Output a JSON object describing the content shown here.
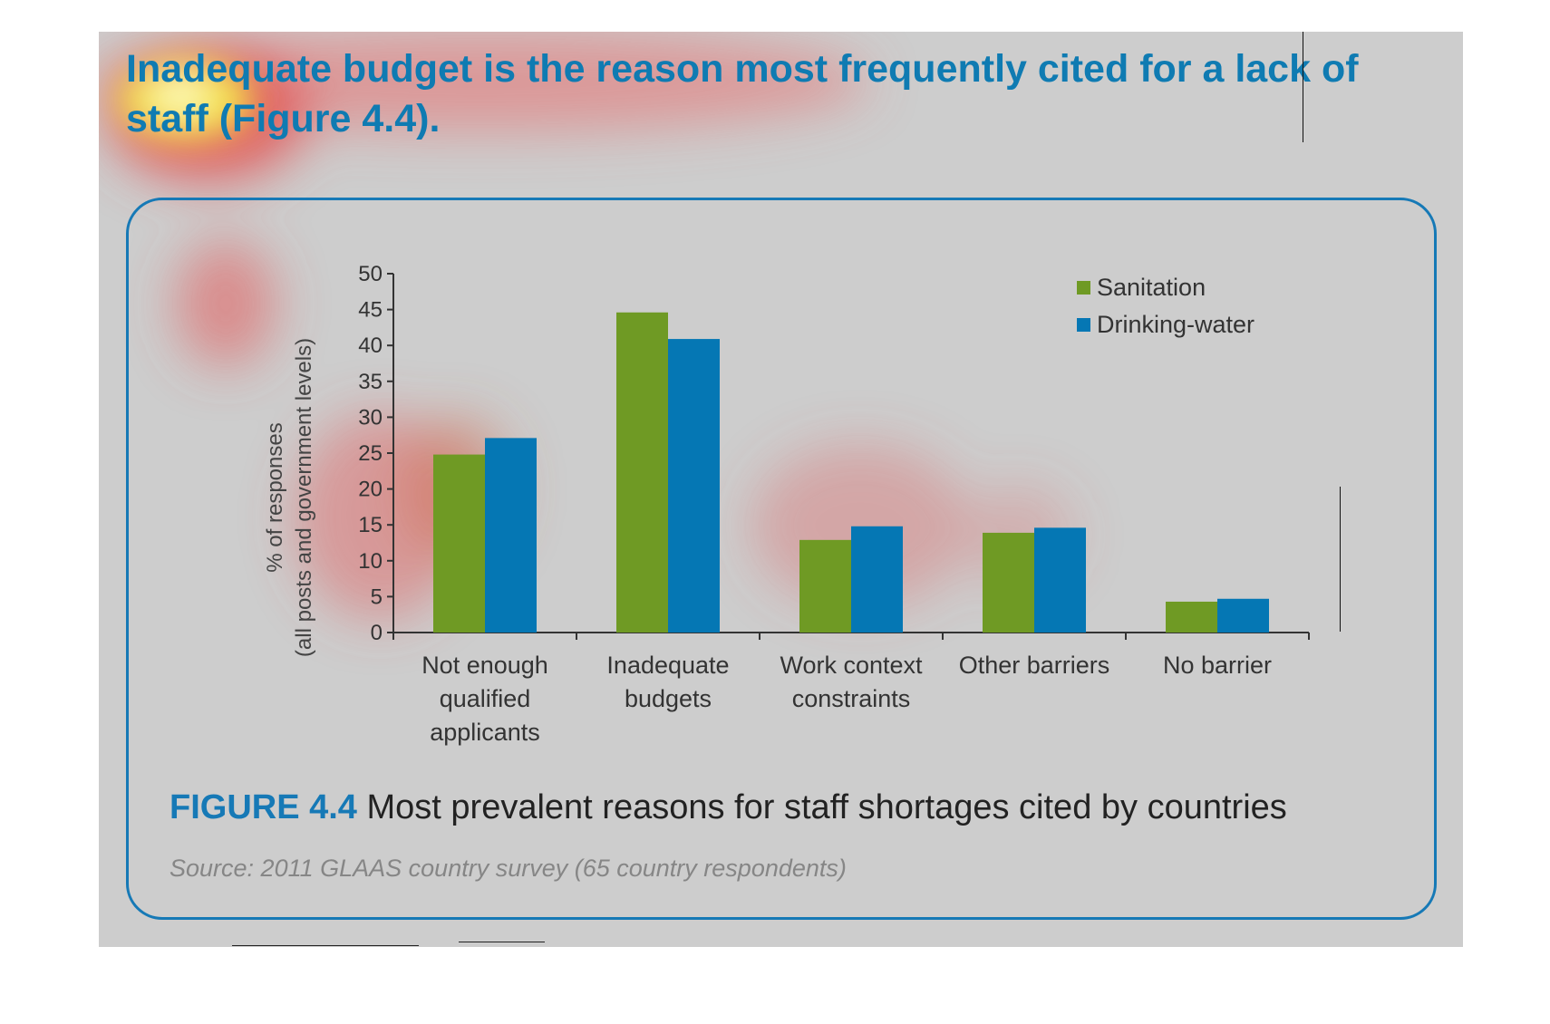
{
  "headline": "Inadequate budget is the reason most frequently cited for a lack of staff (Figure 4.4).",
  "figure": {
    "number": "FIGURE 4.4",
    "caption": " Most prevalent reasons for staff shortages cited by countries",
    "source": "Source: 2011 GLAAS country survey (65 country respondents)"
  },
  "colors": {
    "sanitation": "#6f9a24",
    "drinking_water": "#0577b4",
    "accent": "#1679b6",
    "panel": "#cdcdcd"
  },
  "chart_data": {
    "type": "bar",
    "title": "",
    "ylabel": [
      "% of responses",
      "(all posts and government levels)"
    ],
    "xlabel": "",
    "ylim": [
      0,
      50
    ],
    "yticks": [
      0,
      5,
      10,
      15,
      20,
      25,
      30,
      35,
      40,
      45,
      50
    ],
    "categories": [
      [
        "Not enough",
        "qualified",
        "applicants"
      ],
      [
        "Inadequate",
        "budgets"
      ],
      [
        "Work context",
        "constraints"
      ],
      [
        "Other barriers"
      ],
      [
        "No barrier"
      ]
    ],
    "series": [
      {
        "name": "Sanitation",
        "color": "#6f9a24",
        "values": [
          24.8,
          44.6,
          12.9,
          13.9,
          4.3
        ]
      },
      {
        "name": "Drinking-water",
        "color": "#0577b4",
        "values": [
          27.1,
          40.9,
          14.8,
          14.6,
          4.7
        ]
      }
    ],
    "legend_position": "top-right",
    "grid": false
  }
}
